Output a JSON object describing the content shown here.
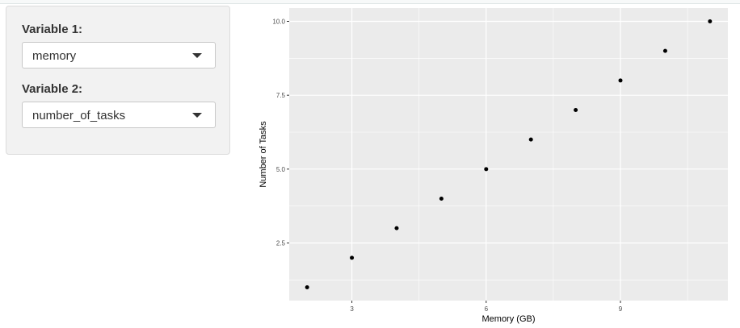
{
  "sidebar": {
    "var1": {
      "label": "Variable 1:",
      "selected": "memory"
    },
    "var2": {
      "label": "Variable 2:",
      "selected": "number_of_tasks"
    }
  },
  "chart_data": {
    "type": "scatter",
    "title": "",
    "xlabel": "Memory (GB)",
    "ylabel": "Number of Tasks",
    "xlim": [
      1.6,
      11.4
    ],
    "ylim": [
      0.55,
      10.45
    ],
    "x_ticks": [
      3,
      6,
      9
    ],
    "y_ticks": [
      2.5,
      5.0,
      7.5,
      10.0
    ],
    "x_tick_labels": [
      "3",
      "6",
      "9"
    ],
    "y_tick_labels": [
      "2.5",
      "5.0",
      "7.5",
      "10.0"
    ],
    "grid": true,
    "colors": {
      "panel": "#ebebeb",
      "grid": "#ffffff",
      "point": "#000000"
    },
    "points": [
      {
        "x": 2,
        "y": 1
      },
      {
        "x": 3,
        "y": 2
      },
      {
        "x": 4,
        "y": 3
      },
      {
        "x": 5,
        "y": 4
      },
      {
        "x": 6,
        "y": 5
      },
      {
        "x": 7,
        "y": 6
      },
      {
        "x": 8,
        "y": 7
      },
      {
        "x": 9,
        "y": 8
      },
      {
        "x": 10,
        "y": 9
      },
      {
        "x": 11,
        "y": 10
      }
    ]
  }
}
